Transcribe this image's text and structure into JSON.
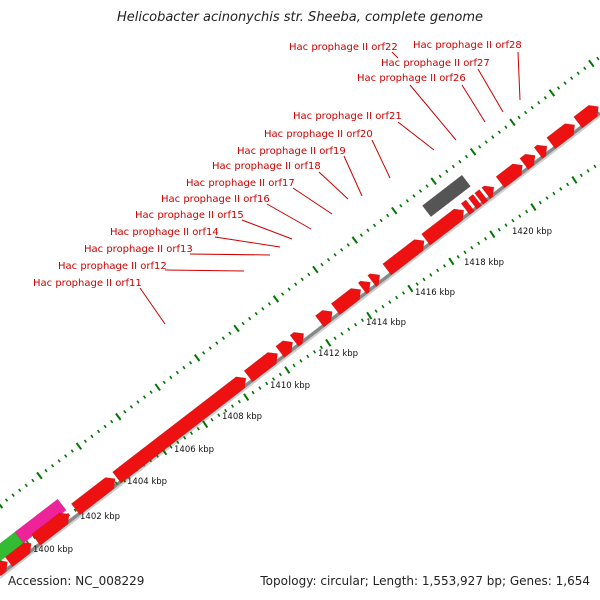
{
  "title": "Helicobacter acinonychis str. Sheeba, complete genome",
  "accession": "Accession: NC_008229",
  "summary": "Topology: circular; Length: 1,553,927 bp; Genes: 1,654",
  "colors": {
    "gene": "#ee1111",
    "rrna": "#ee2299",
    "trna": "#33bb33",
    "other": "#555555",
    "ticks": "#007700",
    "backbone": "#999999",
    "label": "#cc0000"
  },
  "scale_labels": [
    "1400 kbp",
    "1402 kbp",
    "1404 kbp",
    "1406 kbp",
    "1408 kbp",
    "1410 kbp",
    "1412 kbp",
    "1414 kbp",
    "1416 kbp",
    "1418 kbp",
    "1420 kbp"
  ],
  "feature_labels": [
    "Hac prophage II orf11",
    "Hac prophage II orf12",
    "Hac prophage II orf13",
    "Hac prophage II orf14",
    "Hac prophage II orf15",
    "Hac prophage II orf16",
    "Hac prophage II orf17",
    "Hac prophage II orf18",
    "Hac prophage II orf19",
    "Hac prophage II orf20",
    "Hac prophage II orf21",
    "Hac prophage II orf26",
    "Hac prophage II orf27",
    "Hac prophage II orf22",
    "Hac prophage II orf28"
  ]
}
